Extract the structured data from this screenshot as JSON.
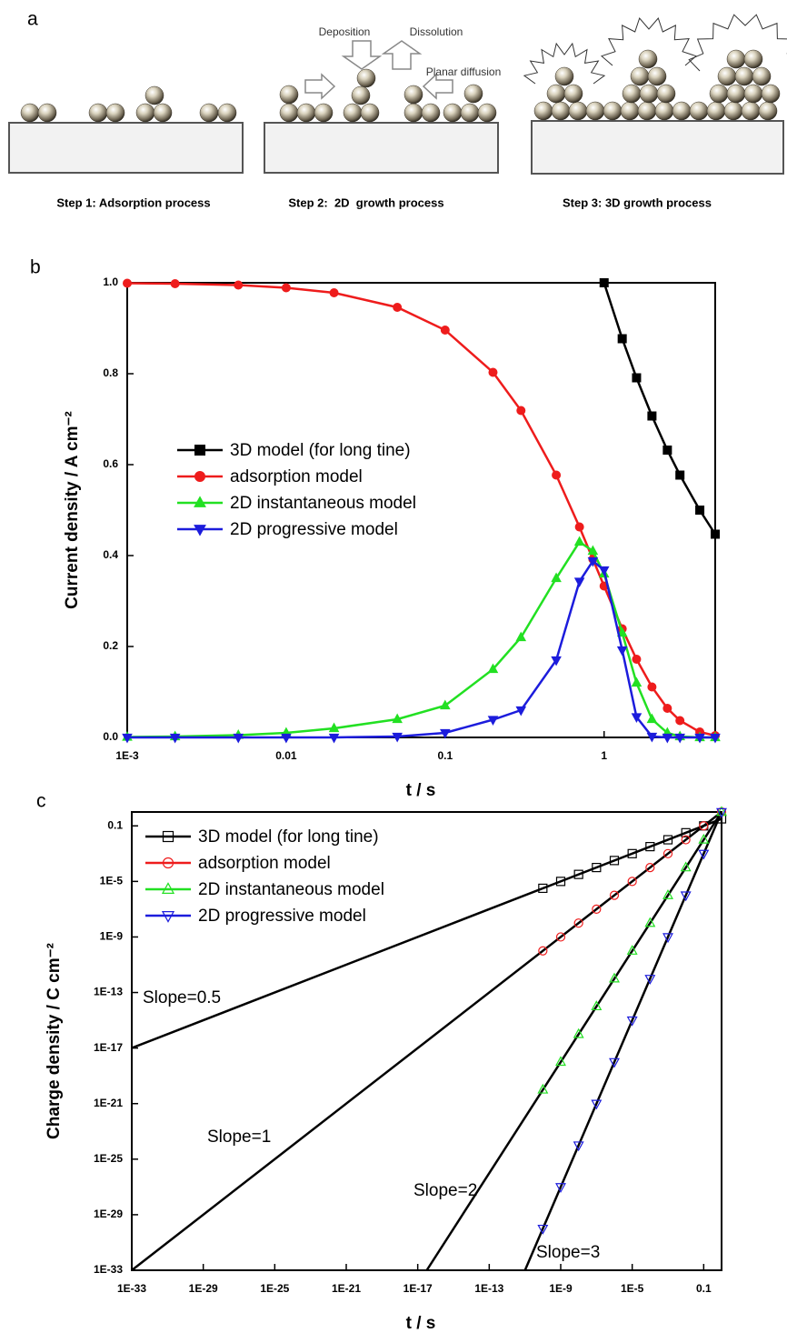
{
  "panel_labels": [
    "a",
    "b",
    "c"
  ],
  "diagram": {
    "deposition": "Deposition",
    "dissolution": "Dissolution",
    "planar_diffusion": "Planar diffusion",
    "steps": [
      "Step 1: Adsorption process",
      "Step 2:  2D  growth process",
      "Step 3: 3D growth process"
    ]
  },
  "chart_data": [
    {
      "type": "line",
      "xlabel": "t / s",
      "ylabel": "Current density / A cm⁻²",
      "xscale": "log",
      "yscale": "linear",
      "marker_fill": "filled",
      "xlim": [
        0.001,
        5
      ],
      "xticks": [
        {
          "value": 0.001,
          "label": "1E-3"
        },
        0.01,
        0.1,
        1
      ],
      "ylim": [
        0,
        1
      ],
      "yticks": [
        {
          "value": 0,
          "label": "0.0"
        },
        0.2,
        0.4,
        0.6,
        0.8,
        {
          "value": 1,
          "label": "1.0"
        }
      ],
      "x": [
        0.001,
        0.002,
        0.005,
        0.01,
        0.02,
        0.05,
        0.1,
        0.2,
        0.3,
        0.5,
        0.7,
        0.85,
        1,
        1.3,
        1.6,
        2,
        2.5,
        3,
        4,
        5
      ],
      "series": [
        {
          "name": "3D model (for long tine)",
          "color": "#000000",
          "marker": "square",
          "values": [
            null,
            null,
            null,
            null,
            null,
            null,
            null,
            null,
            null,
            null,
            null,
            null,
            1.0,
            0.877,
            0.791,
            0.707,
            0.632,
            0.577,
            0.5,
            0.447
          ]
        },
        {
          "name": "adsorption model",
          "color": "#ee1c1c",
          "marker": "circle",
          "values": [
            0.999,
            0.998,
            0.995,
            0.989,
            0.978,
            0.946,
            0.896,
            0.803,
            0.719,
            0.577,
            0.463,
            0.392,
            0.333,
            0.239,
            0.172,
            0.111,
            0.064,
            0.037,
            0.012,
            0.004
          ]
        },
        {
          "name": "2D instantaneous model",
          "color": "#22e022",
          "marker": "triangle-up",
          "values": [
            0.001,
            0.002,
            0.005,
            0.01,
            0.02,
            0.04,
            0.07,
            0.15,
            0.22,
            0.35,
            0.43,
            0.41,
            0.36,
            0.23,
            0.12,
            0.04,
            0.01,
            0.002,
            0,
            0
          ]
        },
        {
          "name": "2D progressive model",
          "color": "#1c1cdc",
          "marker": "triangle-down",
          "values": [
            0,
            0,
            0,
            0,
            0,
            0.002,
            0.01,
            0.039,
            0.06,
            0.17,
            0.343,
            0.388,
            0.368,
            0.192,
            0.045,
            0.002,
            0,
            0,
            0,
            0
          ]
        }
      ]
    },
    {
      "type": "scatter",
      "xlabel": "t / s",
      "ylabel": "Charge density / C cm⁻²",
      "xscale": "log",
      "yscale": "log",
      "marker_fill": "open",
      "xlim": [
        1e-33,
        1
      ],
      "xticks": [
        {
          "value": 1e-33,
          "label": "1E-33"
        },
        {
          "value": 1e-29,
          "label": "1E-29"
        },
        {
          "value": 1e-25,
          "label": "1E-25"
        },
        {
          "value": 1e-21,
          "label": "1E-21"
        },
        {
          "value": 1e-17,
          "label": "1E-17"
        },
        {
          "value": 1e-13,
          "label": "1E-13"
        },
        {
          "value": 1e-09,
          "label": "1E-9"
        },
        {
          "value": 1e-05,
          "label": "1E-5"
        },
        0.1
      ],
      "ylim": [
        1e-33,
        1
      ],
      "yticks": [
        {
          "value": 1e-33,
          "label": "1E-33"
        },
        {
          "value": 1e-29,
          "label": "1E-29"
        },
        {
          "value": 1e-25,
          "label": "1E-25"
        },
        {
          "value": 1e-21,
          "label": "1E-21"
        },
        {
          "value": 1e-17,
          "label": "1E-17"
        },
        {
          "value": 1e-13,
          "label": "1E-13"
        },
        {
          "value": 1e-09,
          "label": "1E-9"
        },
        {
          "value": 1e-05,
          "label": "1E-5"
        },
        0.1
      ],
      "x": [
        1e-10,
        1e-09,
        1e-08,
        1e-07,
        1e-06,
        1e-05,
        0.0001,
        0.001,
        0.01,
        0.1,
        1
      ],
      "series": [
        {
          "name": "3D model (for long tine)",
          "color": "#000000",
          "marker": "square",
          "values": [
            3.2e-06,
            1e-05,
            3.2e-05,
            0.0001,
            0.00032,
            0.001,
            0.0032,
            0.01,
            0.032,
            0.1,
            0.32
          ]
        },
        {
          "name": "adsorption model",
          "color": "#ee1c1c",
          "marker": "circle",
          "values": [
            1e-10,
            1e-09,
            1e-08,
            1e-07,
            1e-06,
            1e-05,
            0.0001,
            0.001,
            0.01,
            0.1,
            1
          ]
        },
        {
          "name": "2D instantaneous model",
          "color": "#22e022",
          "marker": "triangle-up",
          "values": [
            1e-20,
            1e-18,
            1e-16,
            1e-14,
            1e-12,
            1e-10,
            1e-08,
            1e-06,
            0.0001,
            0.01,
            1
          ]
        },
        {
          "name": "2D progressive model",
          "color": "#1c1cdc",
          "marker": "triangle-down",
          "values": [
            1e-30,
            1e-27,
            1e-24,
            1e-21,
            1e-18,
            1e-15,
            1e-12,
            1e-09,
            1e-06,
            0.001,
            1
          ]
        }
      ],
      "fit_lines": [
        {
          "label": "Slope=0.5",
          "x": [
            1e-33,
            1
          ],
          "values": [
            1e-17,
            0.32
          ]
        },
        {
          "label": "Slope=1",
          "x": [
            1e-33,
            1
          ],
          "values": [
            1e-33,
            1
          ]
        },
        {
          "label": "Slope=2",
          "x": [
            3.2e-17,
            1
          ],
          "values": [
            1e-33,
            1
          ]
        },
        {
          "label": "Slope=3",
          "x": [
            1e-11,
            1
          ],
          "values": [
            1e-33,
            1
          ]
        }
      ]
    }
  ]
}
